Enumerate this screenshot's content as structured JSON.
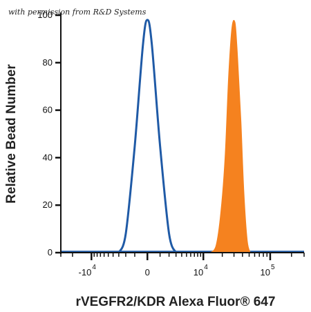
{
  "watermark": "with permission from R&D Systems",
  "chart_data": {
    "type": "area",
    "xlabel": "rVEGFR2/KDR Alexa Fluor® 647",
    "ylabel": "Relative Bead Number",
    "ylim": [
      0,
      100
    ],
    "xscale": "biexponential",
    "xlim": [
      -30000,
      300000
    ],
    "x_ticks": [
      {
        "value": -10000,
        "base": "-10",
        "exp": "4"
      },
      {
        "value": 0,
        "base": "0",
        "exp": ""
      },
      {
        "value": 10000,
        "base": "10",
        "exp": "4"
      },
      {
        "value": 100000,
        "base": "10",
        "exp": "5"
      }
    ],
    "y_ticks": [
      {
        "value": 0,
        "label": "0"
      },
      {
        "value": 20,
        "label": "20"
      },
      {
        "value": 40,
        "label": "40"
      },
      {
        "value": 60,
        "label": "60"
      },
      {
        "value": 80,
        "label": "80"
      },
      {
        "value": 100,
        "label": "100"
      }
    ],
    "grid": false,
    "legend": "none",
    "series": [
      {
        "style": "outline",
        "color": "#1f5aa6",
        "x": [
          -3000,
          -2000,
          -1000,
          -300,
          0,
          300,
          1000,
          2000,
          3000
        ],
        "y": [
          0,
          8,
          45,
          88,
          98,
          88,
          45,
          8,
          0
        ]
      },
      {
        "style": "filled",
        "color": "#f5821f",
        "x": [
          13000,
          16000,
          19000,
          22000,
          25000,
          28000,
          31000,
          33000,
          35000,
          38000,
          42000,
          47000,
          52000
        ],
        "y": [
          0,
          3,
          17,
          40,
          75,
          95,
          97,
          88,
          75,
          55,
          25,
          5,
          0
        ]
      }
    ]
  }
}
